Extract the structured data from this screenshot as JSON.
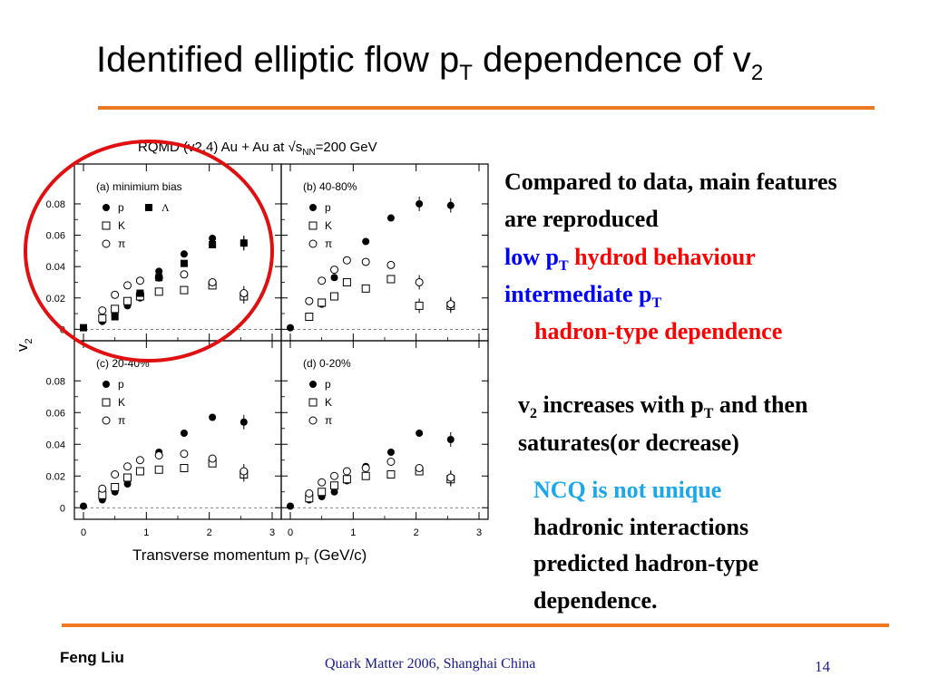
{
  "slide": {
    "title_main": "Identified elliptic flow  p",
    "title_sub": "T",
    "title_rest": " dependence of v",
    "title_sub2": "2"
  },
  "figure": {
    "header_pre": "RQMD (v2.4) Au + Au at ",
    "header_sqrt": "√s",
    "header_sub": "NN",
    "header_post": "=200 GeV",
    "ylabel_main": "v",
    "ylabel_sub": "2",
    "xlabel_main": "Transverse momentum p",
    "xlabel_sub": "T",
    "xlabel_post": " (GeV/c)",
    "xticks": [
      "0",
      "1",
      "2",
      "3"
    ],
    "yticks": [
      "0",
      "0.02",
      "0.04",
      "0.06",
      "0.08"
    ],
    "legend_p": "p",
    "legend_k": "K",
    "legend_pi": "π",
    "legend_lambda": "Λ"
  },
  "chart_data": [
    {
      "type": "scatter",
      "title": "(a) minimium bias",
      "xlim": [
        0,
        3
      ],
      "ylim": [
        -0.005,
        0.095
      ],
      "series": [
        {
          "name": "p",
          "marker": "filled-circle",
          "x": [
            0.3,
            0.5,
            0.7,
            0.9,
            1.2,
            1.6,
            2.05,
            2.55
          ],
          "y": [
            0.005,
            0.009,
            0.015,
            0.02,
            0.037,
            0.048,
            0.058,
            0.055
          ]
        },
        {
          "name": "K",
          "marker": "open-square",
          "x": [
            0.3,
            0.5,
            0.7,
            0.9,
            1.2,
            1.6,
            2.05,
            2.55
          ],
          "y": [
            0.007,
            0.013,
            0.018,
            0.021,
            0.024,
            0.025,
            0.028,
            0.021
          ]
        },
        {
          "name": "π",
          "marker": "open-circle",
          "x": [
            0.3,
            0.5,
            0.7,
            0.9,
            1.2,
            1.6,
            2.05,
            2.55
          ],
          "y": [
            0.012,
            0.022,
            0.028,
            0.031,
            0.033,
            0.035,
            0.03,
            0.023
          ]
        },
        {
          "name": "Λ",
          "marker": "filled-square",
          "x": [
            0.0,
            0.5,
            0.9,
            1.2,
            1.6,
            2.05,
            2.55
          ],
          "y": [
            0.001,
            0.008,
            0.023,
            0.033,
            0.042,
            0.054,
            0.055
          ]
        }
      ]
    },
    {
      "type": "scatter",
      "title": "(b) 40-80%",
      "xlim": [
        0,
        3
      ],
      "ylim": [
        -0.005,
        0.095
      ],
      "series": [
        {
          "name": "p",
          "marker": "filled-circle",
          "x": [
            0.0,
            0.3,
            0.5,
            0.7,
            0.9,
            1.2,
            1.6,
            2.05,
            2.55
          ],
          "y": [
            0.001,
            0.008,
            0.016,
            0.033,
            0.044,
            0.056,
            0.071,
            0.08,
            0.079
          ]
        },
        {
          "name": "K",
          "marker": "open-square",
          "x": [
            0.3,
            0.5,
            0.7,
            0.9,
            1.2,
            1.6,
            2.05,
            2.55
          ],
          "y": [
            0.008,
            0.017,
            0.021,
            0.03,
            0.026,
            0.032,
            0.015,
            0.015
          ]
        },
        {
          "name": "π",
          "marker": "open-circle",
          "x": [
            0.3,
            0.5,
            0.7,
            0.9,
            1.2,
            1.6,
            2.05,
            2.55
          ],
          "y": [
            0.018,
            0.031,
            0.038,
            0.044,
            0.043,
            0.041,
            0.03,
            0.016
          ]
        }
      ]
    },
    {
      "type": "scatter",
      "title": "(c) 20-40%",
      "xlim": [
        0,
        3
      ],
      "ylim": [
        -0.005,
        0.095
      ],
      "series": [
        {
          "name": "p",
          "marker": "filled-circle",
          "x": [
            0.0,
            0.3,
            0.5,
            0.7,
            0.9,
            1.2,
            1.6,
            2.05,
            2.55
          ],
          "y": [
            0.001,
            0.005,
            0.01,
            0.015,
            0.023,
            0.035,
            0.047,
            0.057,
            0.054
          ]
        },
        {
          "name": "K",
          "marker": "open-square",
          "x": [
            0.3,
            0.5,
            0.7,
            0.9,
            1.2,
            1.6,
            2.05,
            2.55
          ],
          "y": [
            0.008,
            0.013,
            0.019,
            0.023,
            0.024,
            0.025,
            0.028,
            0.021
          ]
        },
        {
          "name": "π",
          "marker": "open-circle",
          "x": [
            0.3,
            0.5,
            0.7,
            0.9,
            1.2,
            1.6,
            2.05,
            2.55
          ],
          "y": [
            0.012,
            0.021,
            0.026,
            0.03,
            0.033,
            0.034,
            0.031,
            0.023
          ]
        }
      ]
    },
    {
      "type": "scatter",
      "title": "(d) 0-20%",
      "xlim": [
        0,
        3
      ],
      "ylim": [
        -0.005,
        0.095
      ],
      "series": [
        {
          "name": "p",
          "marker": "filled-circle",
          "x": [
            0.0,
            0.3,
            0.5,
            0.7,
            0.9,
            1.2,
            1.6,
            2.05,
            2.55
          ],
          "y": [
            0.001,
            0.005,
            0.007,
            0.01,
            0.017,
            0.026,
            0.035,
            0.047,
            0.043
          ]
        },
        {
          "name": "K",
          "marker": "open-square",
          "x": [
            0.3,
            0.5,
            0.7,
            0.9,
            1.2,
            1.6,
            2.05,
            2.55
          ],
          "y": [
            0.006,
            0.01,
            0.014,
            0.018,
            0.02,
            0.021,
            0.023,
            0.018
          ]
        },
        {
          "name": "π",
          "marker": "open-circle",
          "x": [
            0.3,
            0.5,
            0.7,
            0.9,
            1.2,
            1.6,
            2.05,
            2.55
          ],
          "y": [
            0.009,
            0.016,
            0.02,
            0.023,
            0.025,
            0.029,
            0.025,
            0.019
          ]
        }
      ]
    }
  ],
  "notes": {
    "line1": "Compared to data, main features",
    "line2": "are reproduced",
    "low_p": "low p",
    "low_sub": "T",
    "low_rest": " hydrod behaviour",
    "inter_p": "intermediate p",
    "inter_sub": "T",
    "hadron_dep": "hadron-type dependence",
    "v2_v": "v",
    "v2_sub": "2",
    "v2_rest": " increases with p",
    "v2_sub2": "T",
    "v2_end": " and then",
    "saturates": "saturates(or decrease)",
    "ncq": "NCQ is not unique",
    "hadronic": "hadronic interactions",
    "predicted": "predicted  hadron-type",
    "dependence": "dependence."
  },
  "footer": {
    "author": "Feng Liu",
    "conference": "Quark Matter 2006,  Shanghai  China",
    "page": "14"
  },
  "colors": {
    "accent_line": "#f07820",
    "highlight_circle": "#e01010",
    "blue_text": "#0000ff",
    "red_text": "#ff0000",
    "cyan_text": "#1aa7ec",
    "footer_text": "#1a1a8c"
  }
}
